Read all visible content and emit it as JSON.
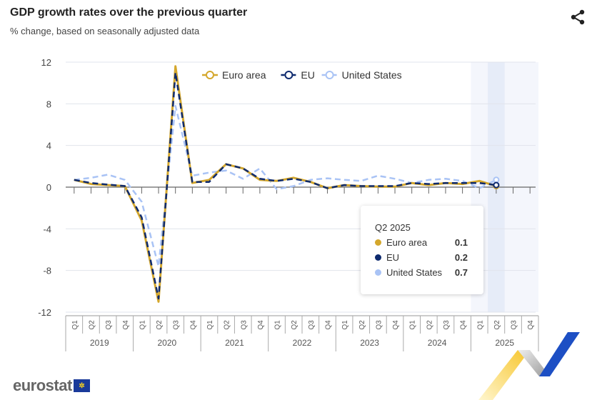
{
  "header": {
    "title": "GDP growth rates over the previous quarter",
    "subtitle": "% change, based on seasonally adjusted data",
    "share_icon": "share-icon"
  },
  "chart_data": {
    "type": "line",
    "title": "GDP growth rates over the previous quarter",
    "subtitle": "% change, based on seasonally adjusted data",
    "ylim": [
      -12,
      12
    ],
    "yticks": [
      12,
      8,
      4,
      0,
      -4,
      -8,
      -12
    ],
    "grid": true,
    "legend_placement": "top",
    "years": [
      "2019",
      "2020",
      "2021",
      "2022",
      "2023",
      "2024",
      "2025"
    ],
    "quarters": [
      "Q1",
      "Q2",
      "Q3",
      "Q4"
    ],
    "highlighted_period": "2025",
    "hover_category": "Q2 2025",
    "series": [
      {
        "name": "Euro area",
        "color": "#d4a72c",
        "dash": "solid",
        "values": [
          0.7,
          0.3,
          0.2,
          0.1,
          -3.2,
          -11.0,
          11.6,
          0.4,
          0.7,
          2.2,
          1.8,
          0.7,
          0.6,
          0.9,
          0.5,
          -0.1,
          0.2,
          0.1,
          0.05,
          0.05,
          0.4,
          0.2,
          0.4,
          0.3,
          0.6,
          0.1
        ]
      },
      {
        "name": "EU",
        "color": "#0e2a6e",
        "dash": "dashed",
        "values": [
          0.7,
          0.4,
          0.25,
          0.1,
          -2.9,
          -10.7,
          11.0,
          0.5,
          0.5,
          2.2,
          1.8,
          0.8,
          0.6,
          0.8,
          0.5,
          -0.1,
          0.2,
          0.1,
          0.1,
          0.1,
          0.4,
          0.3,
          0.4,
          0.4,
          0.4,
          0.2
        ]
      },
      {
        "name": "United States",
        "color": "#a9c3f5",
        "dash": "dashed",
        "values": [
          0.7,
          0.9,
          1.2,
          0.7,
          -1.4,
          -7.6,
          7.8,
          1.1,
          1.4,
          1.6,
          0.8,
          1.8,
          -0.2,
          0.1,
          0.7,
          0.85,
          0.7,
          0.6,
          1.1,
          0.8,
          0.4,
          0.7,
          0.8,
          0.6,
          -0.1,
          0.7
        ]
      }
    ]
  },
  "tooltip": {
    "title": "Q2 2025",
    "rows": [
      {
        "name": "Euro area",
        "value": "0.1",
        "color": "#d4a72c"
      },
      {
        "name": "EU",
        "value": "0.2",
        "color": "#0e2a6e"
      },
      {
        "name": "United States",
        "value": "0.7",
        "color": "#a9c3f5"
      }
    ]
  },
  "logo": {
    "text": "eurostat"
  }
}
